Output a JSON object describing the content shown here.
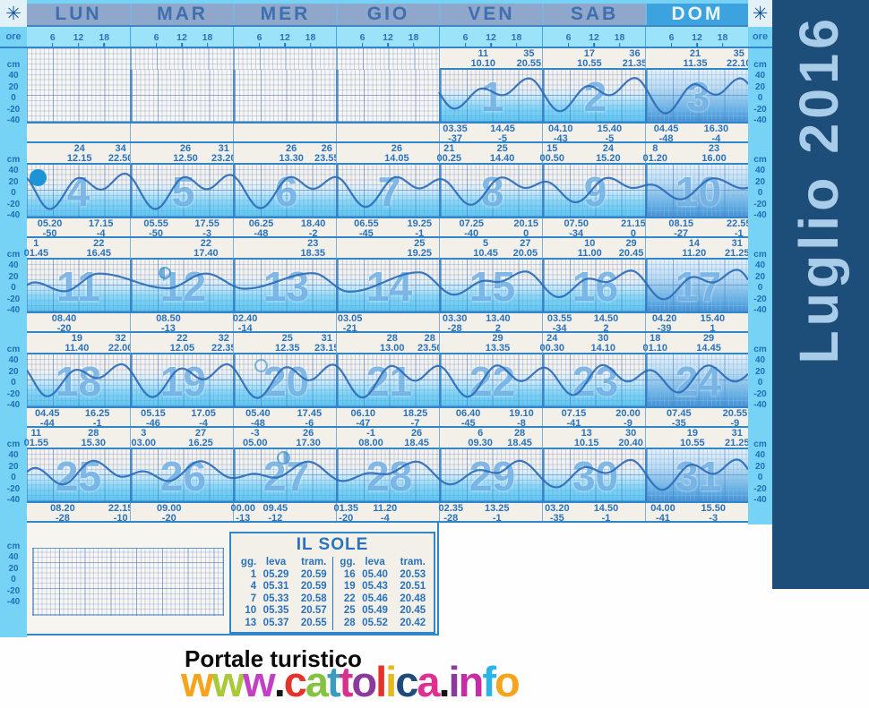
{
  "sidebar": {
    "title": "Luglio 2016"
  },
  "header": {
    "weekdays": [
      "LUN",
      "MAR",
      "MER",
      "GIO",
      "VEN",
      "SAB",
      "DOM"
    ],
    "ore": "ore",
    "hours": [
      "6",
      "12",
      "18"
    ],
    "star": "✳"
  },
  "scale": {
    "unit": "cm",
    "ticks": [
      "40",
      "20",
      "0",
      "-20",
      "-40"
    ]
  },
  "chart_data": {
    "type": "line",
    "title": "Luglio 2016",
    "ylabel": "cm",
    "ylim": [
      -55,
      45
    ],
    "x_hour_ticks": [
      "6",
      "12",
      "18"
    ],
    "start_weekday_index": 4,
    "days": [
      {
        "n": "1",
        "high": [
          [
            "11",
            "10.10"
          ],
          [
            "35",
            "20.55"
          ]
        ],
        "low": [
          [
            "03.35",
            "-37"
          ],
          [
            "14.45",
            "-5"
          ]
        ]
      },
      {
        "n": "2",
        "high": [
          [
            "17",
            "10.55"
          ],
          [
            "36",
            "21.35"
          ]
        ],
        "low": [
          [
            "04.10",
            "-43"
          ],
          [
            "15.40",
            "-5"
          ]
        ]
      },
      {
        "n": "3",
        "high": [
          [
            "21",
            "11.35"
          ],
          [
            "35",
            "22.10"
          ]
        ],
        "low": [
          [
            "04.45",
            "-48"
          ],
          [
            "16.30",
            "-4"
          ]
        ]
      },
      {
        "n": "4",
        "moon": "new",
        "high": [
          [
            "24",
            "12.15"
          ],
          [
            "34",
            "22.50"
          ]
        ],
        "low": [
          [
            "05.20",
            "-50"
          ],
          [
            "17.15",
            "-4"
          ]
        ]
      },
      {
        "n": "5",
        "high": [
          [
            "26",
            "12.50"
          ],
          [
            "31",
            "23.20"
          ]
        ],
        "low": [
          [
            "05.55",
            "-50"
          ],
          [
            "17.55",
            "-3"
          ]
        ]
      },
      {
        "n": "6",
        "high": [
          [
            "26",
            "13.30"
          ],
          [
            "26",
            "23.55"
          ]
        ],
        "low": [
          [
            "06.25",
            "-48"
          ],
          [
            "18.40",
            "-2"
          ]
        ]
      },
      {
        "n": "7",
        "high": [
          [
            "26",
            "14.05"
          ]
        ],
        "low": [
          [
            "06.55",
            "-45"
          ],
          [
            "19.25",
            "-1"
          ]
        ]
      },
      {
        "n": "8",
        "high": [
          [
            "21",
            "00.25"
          ],
          [
            "25",
            "14.40"
          ]
        ],
        "low": [
          [
            "07.25",
            "-40"
          ],
          [
            "20.15",
            "0"
          ]
        ]
      },
      {
        "n": "9",
        "high": [
          [
            "15",
            "00.50"
          ],
          [
            "24",
            "15.20"
          ]
        ],
        "low": [
          [
            "07.50",
            "-34"
          ],
          [
            "21.15",
            "0"
          ]
        ]
      },
      {
        "n": "10",
        "high": [
          [
            "8",
            "01.20"
          ],
          [
            "23",
            "16.00"
          ]
        ],
        "low": [
          [
            "08.15",
            "-27"
          ],
          [
            "22.55",
            "-1"
          ]
        ]
      },
      {
        "n": "11",
        "high": [
          [
            "1",
            "01.45"
          ],
          [
            "22",
            "16.45"
          ]
        ],
        "low": [
          [
            "08.40",
            "-20"
          ]
        ]
      },
      {
        "n": "12",
        "moon": "first",
        "high": [
          [
            "22",
            "17.40"
          ]
        ],
        "low": [
          [
            "08.50",
            "-13"
          ]
        ]
      },
      {
        "n": "13",
        "high": [
          [
            "23",
            "18.35"
          ]
        ],
        "low": [
          [
            "02.40",
            "-14"
          ]
        ]
      },
      {
        "n": "14",
        "high": [
          [
            "25",
            "19.25"
          ]
        ],
        "low": [
          [
            "03.05",
            "-21"
          ]
        ]
      },
      {
        "n": "15",
        "high": [
          [
            "5",
            "10.45"
          ],
          [
            "27",
            "20.05"
          ]
        ],
        "low": [
          [
            "03.30",
            "-28"
          ],
          [
            "13.40",
            "2"
          ]
        ]
      },
      {
        "n": "16",
        "high": [
          [
            "10",
            "11.00"
          ],
          [
            "29",
            "20.45"
          ]
        ],
        "low": [
          [
            "03.55",
            "-34"
          ],
          [
            "14.50",
            "2"
          ]
        ]
      },
      {
        "n": "17",
        "high": [
          [
            "14",
            "11.20"
          ],
          [
            "31",
            "21.25"
          ]
        ],
        "low": [
          [
            "04.20",
            "-39"
          ],
          [
            "15.40",
            "1"
          ]
        ]
      },
      {
        "n": "18",
        "high": [
          [
            "19",
            "11.40"
          ],
          [
            "32",
            "22.00"
          ]
        ],
        "low": [
          [
            "04.45",
            "-44"
          ],
          [
            "16.25",
            "-1"
          ]
        ]
      },
      {
        "n": "19",
        "high": [
          [
            "22",
            "12.05"
          ],
          [
            "32",
            "22.35"
          ]
        ],
        "low": [
          [
            "05.15",
            "-46"
          ],
          [
            "17.05",
            "-4"
          ]
        ]
      },
      {
        "n": "20",
        "moon": "full",
        "high": [
          [
            "25",
            "12.35"
          ],
          [
            "31",
            "23.15"
          ]
        ],
        "low": [
          [
            "05.40",
            "-48"
          ],
          [
            "17.45",
            "-6"
          ]
        ]
      },
      {
        "n": "21",
        "high": [
          [
            "28",
            "13.00"
          ],
          [
            "28",
            "23.50"
          ]
        ],
        "low": [
          [
            "06.10",
            "-47"
          ],
          [
            "18.25",
            "-7"
          ]
        ]
      },
      {
        "n": "22",
        "high": [
          [
            "29",
            "13.35"
          ]
        ],
        "low": [
          [
            "06.40",
            "-45"
          ],
          [
            "19.10",
            "-8"
          ]
        ]
      },
      {
        "n": "23",
        "high": [
          [
            "24",
            "00.30"
          ],
          [
            "30",
            "14.10"
          ]
        ],
        "low": [
          [
            "07.15",
            "-41"
          ],
          [
            "20.00",
            "-9"
          ]
        ]
      },
      {
        "n": "24",
        "high": [
          [
            "18",
            "01.10"
          ],
          [
            "29",
            "14.45"
          ]
        ],
        "low": [
          [
            "07.45",
            "-35"
          ],
          [
            "20.55",
            "-9"
          ]
        ]
      },
      {
        "n": "25",
        "high": [
          [
            "11",
            "01.55"
          ],
          [
            "28",
            "15.30"
          ]
        ],
        "low": [
          [
            "08.20",
            "-28"
          ],
          [
            "22.15",
            "-10"
          ]
        ]
      },
      {
        "n": "26",
        "high": [
          [
            "3",
            "03.00"
          ],
          [
            "27",
            "16.25"
          ]
        ],
        "low": [
          [
            "09.00",
            "-20"
          ]
        ]
      },
      {
        "n": "27",
        "moon": "last",
        "high": [
          [
            "-3",
            "05.00"
          ],
          [
            "26",
            "17.30"
          ]
        ],
        "low": [
          [
            "00.00",
            "-13"
          ],
          [
            "09.45",
            "-12"
          ]
        ]
      },
      {
        "n": "28",
        "high": [
          [
            "-1",
            "08.00"
          ],
          [
            "26",
            "18.45"
          ]
        ],
        "low": [
          [
            "01.35",
            "-20"
          ],
          [
            "11.20",
            "-4"
          ]
        ]
      },
      {
        "n": "29",
        "high": [
          [
            "6",
            "09.30"
          ],
          [
            "28",
            "18.45"
          ]
        ],
        "low": [
          [
            "02.35",
            "-28"
          ],
          [
            "13.25",
            "-1"
          ]
        ]
      },
      {
        "n": "30",
        "high": [
          [
            "13",
            "10.15"
          ],
          [
            "30",
            "20.40"
          ]
        ],
        "low": [
          [
            "03.20",
            "-35"
          ],
          [
            "14.50",
            "-1"
          ]
        ]
      },
      {
        "n": "31",
        "high": [
          [
            "19",
            "10.55"
          ],
          [
            "31",
            "21.25"
          ]
        ],
        "low": [
          [
            "04.00",
            "-41"
          ],
          [
            "15.50",
            "-3"
          ]
        ]
      }
    ]
  },
  "sole": {
    "title": "IL SOLE",
    "headers": [
      "gg.",
      "leva",
      "tram."
    ],
    "cols": [
      {
        "rows": [
          [
            "1",
            "05.29",
            "20.59"
          ],
          [
            "4",
            "05.31",
            "20.59"
          ],
          [
            "7",
            "05.33",
            "20.58"
          ],
          [
            "10",
            "05.35",
            "20.57"
          ],
          [
            "13",
            "05.37",
            "20.55"
          ]
        ]
      },
      {
        "rows": [
          [
            "16",
            "05.40",
            "20.53"
          ],
          [
            "19",
            "05.43",
            "20.51"
          ],
          [
            "22",
            "05.46",
            "20.48"
          ],
          [
            "25",
            "05.49",
            "20.45"
          ],
          [
            "28",
            "05.52",
            "20.42"
          ]
        ]
      }
    ]
  },
  "footer": {
    "tagline": "Portale turistico",
    "brand": [
      {
        "ch": "w",
        "c": "#f6a41d"
      },
      {
        "ch": "w",
        "c": "#a9c93b"
      },
      {
        "ch": "w",
        "c": "#c33fc3"
      },
      {
        "ch": ".",
        "c": "#151515"
      },
      {
        "ch": "c",
        "c": "#e63329"
      },
      {
        "ch": "a",
        "c": "#84c341"
      },
      {
        "ch": "t",
        "c": "#3a9cc0"
      },
      {
        "ch": "t",
        "c": "#d9308f"
      },
      {
        "ch": "o",
        "c": "#8c3a9e"
      },
      {
        "ch": "l",
        "c": "#e63329"
      },
      {
        "ch": "i",
        "c": "#e5b91f"
      },
      {
        "ch": "c",
        "c": "#1e4b7c"
      },
      {
        "ch": "a",
        "c": "#df2f92"
      },
      {
        "ch": ".",
        "c": "#151515"
      },
      {
        "ch": "i",
        "c": "#8c3a9e"
      },
      {
        "ch": "n",
        "c": "#c72ba5"
      },
      {
        "ch": "f",
        "c": "#2bb4e8"
      },
      {
        "ch": "o",
        "c": "#f6a41d"
      }
    ]
  }
}
